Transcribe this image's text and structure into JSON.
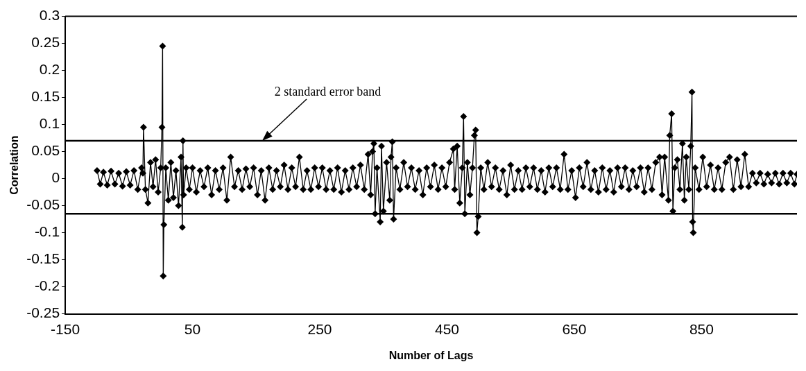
{
  "chart_data": {
    "type": "line",
    "xlabel": "Number of Lags",
    "ylabel": "Correlation",
    "xlim": [
      -150,
      1000
    ],
    "xticks": [
      -150,
      50,
      250,
      450,
      650,
      850
    ],
    "ylim": [
      -0.25,
      0.3
    ],
    "yticks": [
      -0.25,
      -0.2,
      -0.15,
      -0.1,
      -0.05,
      0,
      0.05,
      0.1,
      0.15,
      0.2,
      0.25,
      0.3
    ],
    "grid": false,
    "legend": false,
    "marker": "diamond",
    "line_style": "solid",
    "ref_lines": [
      {
        "axis": "y",
        "value": 0.07,
        "color": "#000000"
      },
      {
        "axis": "y",
        "value": -0.065,
        "color": "#000000"
      }
    ],
    "annotations": [
      {
        "text": "2 standard error band",
        "x": 160,
        "y": 0.07
      }
    ],
    "series": [
      {
        "color": "#000000",
        "x": [
          -100,
          -95,
          -90,
          -84,
          -78,
          -72,
          -66,
          -60,
          -54,
          -48,
          -42,
          -36,
          -30,
          -28,
          -27,
          -24,
          -20,
          -16,
          -12,
          -8,
          -4,
          0,
          2,
          3,
          4,
          5,
          8,
          12,
          16,
          20,
          24,
          28,
          32,
          34,
          35,
          36,
          40,
          45,
          50,
          56,
          62,
          68,
          74,
          80,
          86,
          92,
          98,
          104,
          110,
          116,
          122,
          128,
          134,
          140,
          146,
          152,
          158,
          164,
          170,
          176,
          182,
          188,
          194,
          200,
          206,
          212,
          218,
          224,
          230,
          236,
          242,
          248,
          254,
          260,
          266,
          272,
          278,
          284,
          290,
          296,
          302,
          308,
          314,
          320,
          326,
          330,
          333,
          335,
          337,
          340,
          345,
          347,
          350,
          355,
          360,
          362,
          364,
          366,
          370,
          376,
          382,
          388,
          394,
          400,
          406,
          412,
          418,
          424,
          430,
          436,
          442,
          448,
          454,
          460,
          462,
          466,
          470,
          474,
          476,
          478,
          482,
          486,
          490,
          493,
          495,
          497,
          499,
          503,
          508,
          514,
          520,
          526,
          532,
          538,
          544,
          550,
          556,
          562,
          568,
          574,
          580,
          586,
          592,
          598,
          604,
          610,
          616,
          622,
          628,
          634,
          640,
          646,
          652,
          658,
          664,
          670,
          676,
          682,
          688,
          694,
          700,
          706,
          712,
          718,
          724,
          730,
          736,
          742,
          748,
          754,
          760,
          766,
          772,
          778,
          784,
          788,
          792,
          798,
          800,
          803,
          805,
          808,
          812,
          816,
          820,
          823,
          826,
          830,
          833,
          835,
          836,
          837,
          840,
          846,
          852,
          858,
          864,
          870,
          876,
          882,
          888,
          894,
          900,
          906,
          912,
          918,
          924,
          930,
          936,
          942,
          948,
          954,
          960,
          966,
          972,
          978,
          984,
          990,
          996,
          1000
        ],
        "values": [
          0.015,
          -0.01,
          0.012,
          -0.012,
          0.014,
          -0.01,
          0.01,
          -0.014,
          0.013,
          -0.012,
          0.015,
          -0.02,
          0.02,
          0.01,
          0.095,
          -0.02,
          -0.045,
          0.03,
          -0.015,
          0.035,
          -0.025,
          0.02,
          0.095,
          0.245,
          -0.18,
          -0.085,
          0.02,
          -0.04,
          0.03,
          -0.035,
          0.015,
          -0.05,
          0.04,
          -0.09,
          0.07,
          -0.03,
          0.02,
          -0.02,
          0.02,
          -0.025,
          0.015,
          -0.015,
          0.02,
          -0.03,
          0.015,
          -0.02,
          0.02,
          -0.04,
          0.04,
          -0.015,
          0.015,
          -0.02,
          0.018,
          -0.015,
          0.02,
          -0.03,
          0.015,
          -0.04,
          0.02,
          -0.02,
          0.015,
          -0.015,
          0.025,
          -0.02,
          0.02,
          -0.015,
          0.04,
          -0.02,
          0.015,
          -0.02,
          0.02,
          -0.015,
          0.02,
          -0.02,
          0.015,
          -0.02,
          0.02,
          -0.025,
          0.015,
          -0.02,
          0.02,
          -0.015,
          0.025,
          -0.02,
          0.045,
          -0.03,
          0.05,
          0.065,
          -0.065,
          0.02,
          -0.08,
          0.06,
          -0.06,
          0.03,
          -0.04,
          0.04,
          0.068,
          -0.075,
          0.02,
          -0.02,
          0.03,
          -0.015,
          0.02,
          -0.02,
          0.015,
          -0.03,
          0.02,
          -0.015,
          0.025,
          -0.02,
          0.02,
          -0.015,
          0.03,
          0.055,
          -0.02,
          0.06,
          -0.045,
          0.02,
          0.115,
          -0.065,
          0.03,
          -0.03,
          0.02,
          0.08,
          0.09,
          -0.1,
          -0.07,
          0.02,
          -0.02,
          0.03,
          -0.015,
          0.02,
          -0.02,
          0.015,
          -0.03,
          0.025,
          -0.02,
          0.015,
          -0.02,
          0.02,
          -0.015,
          0.02,
          -0.02,
          0.015,
          -0.025,
          0.02,
          -0.015,
          0.02,
          -0.02,
          0.045,
          -0.02,
          0.015,
          -0.035,
          0.02,
          -0.015,
          0.03,
          -0.02,
          0.015,
          -0.025,
          0.02,
          -0.02,
          0.015,
          -0.025,
          0.02,
          -0.015,
          0.02,
          -0.02,
          0.015,
          -0.015,
          0.02,
          -0.025,
          0.02,
          -0.02,
          0.03,
          0.04,
          -0.03,
          0.04,
          -0.04,
          0.08,
          0.12,
          -0.06,
          0.02,
          0.035,
          -0.02,
          0.065,
          -0.04,
          0.04,
          -0.02,
          0.06,
          0.16,
          -0.08,
          -0.1,
          0.02,
          -0.02,
          0.04,
          -0.015,
          0.025,
          -0.02,
          0.02,
          -0.02,
          0.03,
          0.04,
          -0.02,
          0.035,
          -0.015,
          0.045,
          -0.015,
          0.01,
          -0.008,
          0.01,
          -0.01,
          0.008,
          -0.008,
          0.01,
          -0.01,
          0.01,
          -0.008,
          0.01,
          -0.01,
          0.008
        ]
      }
    ]
  }
}
